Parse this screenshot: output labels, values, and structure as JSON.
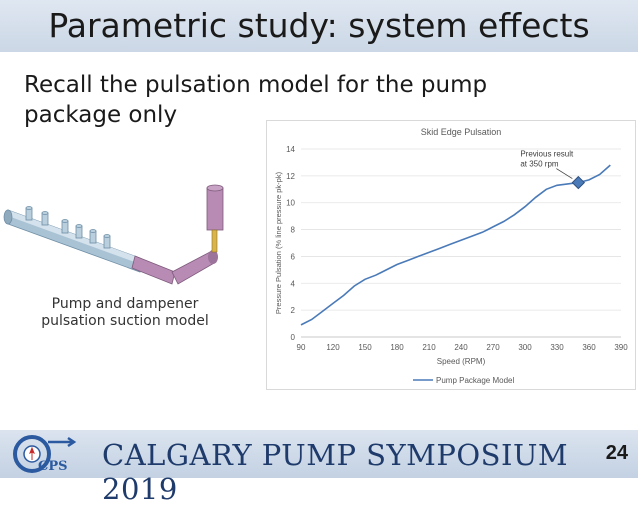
{
  "slide": {
    "title": "Parametric study: system effects",
    "bullet": "Recall the pulsation model for the pump package only",
    "model_caption_line1": "Pump and dampener",
    "model_caption_line2": "pulsation suction model",
    "footer_text": "CALGARY PUMP SYMPOSIUM 2019",
    "page_number": "24",
    "logo_text": "CPS"
  },
  "colors": {
    "line": "#4a7ab8",
    "marker": "#4a7ab8",
    "header": "#1f3b6b"
  },
  "chart_data": {
    "type": "line",
    "title": "Skid Edge Pulsation",
    "xlabel": "Speed (RPM)",
    "ylabel": "Pressure Pulsation (% line pressure pk-pk)",
    "xlim": [
      90,
      390
    ],
    "ylim": [
      0,
      14
    ],
    "x_ticks": [
      90,
      120,
      150,
      180,
      210,
      240,
      270,
      300,
      330,
      360,
      390
    ],
    "y_ticks": [
      0,
      2,
      4,
      6,
      8,
      10,
      12,
      14
    ],
    "grid": "horizontal",
    "legend": "bottom",
    "series": [
      {
        "name": "Pump Package Model",
        "x": [
          90,
          100,
          110,
          120,
          130,
          140,
          150,
          160,
          170,
          180,
          190,
          200,
          210,
          220,
          230,
          240,
          250,
          260,
          265,
          270,
          280,
          290,
          300,
          310,
          320,
          330,
          340,
          350,
          360,
          370,
          380
        ],
        "y": [
          0.9,
          1.3,
          1.9,
          2.5,
          3.1,
          3.8,
          4.3,
          4.6,
          5.0,
          5.4,
          5.7,
          6.0,
          6.3,
          6.6,
          6.9,
          7.2,
          7.5,
          7.8,
          8.0,
          8.2,
          8.6,
          9.1,
          9.7,
          10.4,
          11.0,
          11.3,
          11.4,
          11.5,
          11.7,
          12.1,
          12.8
        ]
      }
    ],
    "annotation": {
      "text_line1": "Previous result",
      "text_line2": "at 350 rpm",
      "x": 350,
      "y": 11.5
    }
  }
}
